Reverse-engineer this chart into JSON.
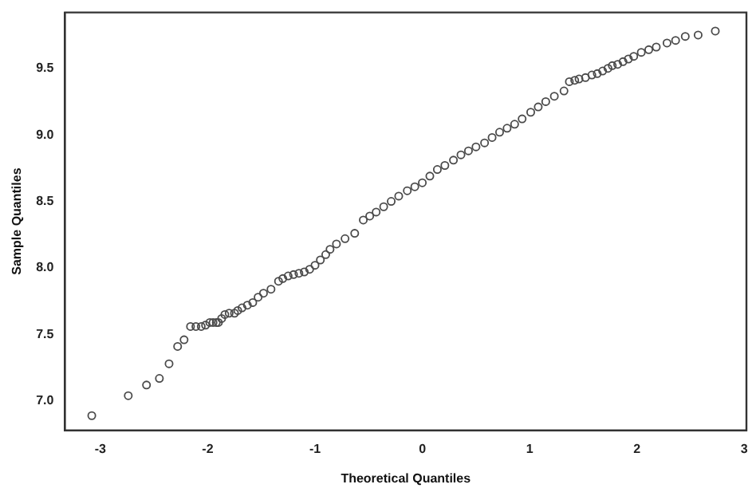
{
  "chart_data": {
    "type": "scatter",
    "xlabel": "Theoretical Quantiles",
    "ylabel": "Sample Quantiles",
    "x": [
      -3.08,
      -2.74,
      -2.57,
      -2.45,
      -2.36,
      -2.28,
      -2.22,
      -2.16,
      -2.11,
      -2.06,
      -2.02,
      -1.98,
      -1.95,
      -1.92,
      -1.9,
      -1.87,
      -1.84,
      -1.8,
      -1.75,
      -1.72,
      -1.68,
      -1.63,
      -1.58,
      -1.53,
      -1.48,
      -1.41,
      -1.34,
      -1.3,
      -1.25,
      -1.2,
      -1.15,
      -1.1,
      -1.05,
      -1.0,
      -0.95,
      -0.9,
      -0.86,
      -0.8,
      -0.72,
      -0.63,
      -0.55,
      -0.49,
      -0.43,
      -0.36,
      -0.29,
      -0.22,
      -0.14,
      -0.07,
      0,
      0.07,
      0.14,
      0.21,
      0.29,
      0.36,
      0.43,
      0.5,
      0.58,
      0.65,
      0.72,
      0.79,
      0.86,
      0.93,
      1.01,
      1.08,
      1.15,
      1.23,
      1.32,
      1.37,
      1.42,
      1.46,
      1.52,
      1.58,
      1.63,
      1.68,
      1.73,
      1.77,
      1.82,
      1.87,
      1.92,
      1.97,
      2.04,
      2.11,
      2.18,
      2.28,
      2.36,
      2.45,
      2.57,
      2.73
    ],
    "values": [
      6.89,
      7.04,
      7.12,
      7.17,
      7.28,
      7.41,
      7.46,
      7.56,
      7.56,
      7.56,
      7.57,
      7.59,
      7.59,
      7.59,
      7.59,
      7.62,
      7.65,
      7.66,
      7.66,
      7.68,
      7.7,
      7.72,
      7.74,
      7.78,
      7.81,
      7.84,
      7.9,
      7.92,
      7.94,
      7.95,
      7.96,
      7.97,
      7.99,
      8.02,
      8.06,
      8.1,
      8.14,
      8.18,
      8.22,
      8.26,
      8.36,
      8.39,
      8.42,
      8.46,
      8.5,
      8.54,
      8.58,
      8.61,
      8.64,
      8.69,
      8.74,
      8.77,
      8.81,
      8.85,
      8.88,
      8.91,
      8.94,
      8.98,
      9.02,
      9.05,
      9.08,
      9.12,
      9.17,
      9.21,
      9.25,
      9.29,
      9.33,
      9.4,
      9.41,
      9.42,
      9.43,
      9.45,
      9.46,
      9.48,
      9.5,
      9.52,
      9.53,
      9.55,
      9.57,
      9.59,
      9.62,
      9.64,
      9.66,
      9.69,
      9.71,
      9.74,
      9.75,
      9.78
    ],
    "color": "#4a4a4a",
    "marker": "circle",
    "grid": false,
    "legend": false,
    "xlim": [
      -3.33,
      3.02
    ],
    "ylim": [
      6.78,
      9.92
    ],
    "xticks": [
      -3,
      -2,
      -1,
      0,
      1,
      2,
      3
    ],
    "yticks": [
      {
        "value": 7,
        "label": "7.0"
      },
      {
        "value": 7.5,
        "label": "7.5"
      },
      {
        "value": 8,
        "label": "8.0"
      },
      {
        "value": 8.5,
        "label": "8.5"
      },
      {
        "value": 9,
        "label": "9.0"
      },
      {
        "value": 9.5,
        "label": "9.5"
      }
    ]
  }
}
